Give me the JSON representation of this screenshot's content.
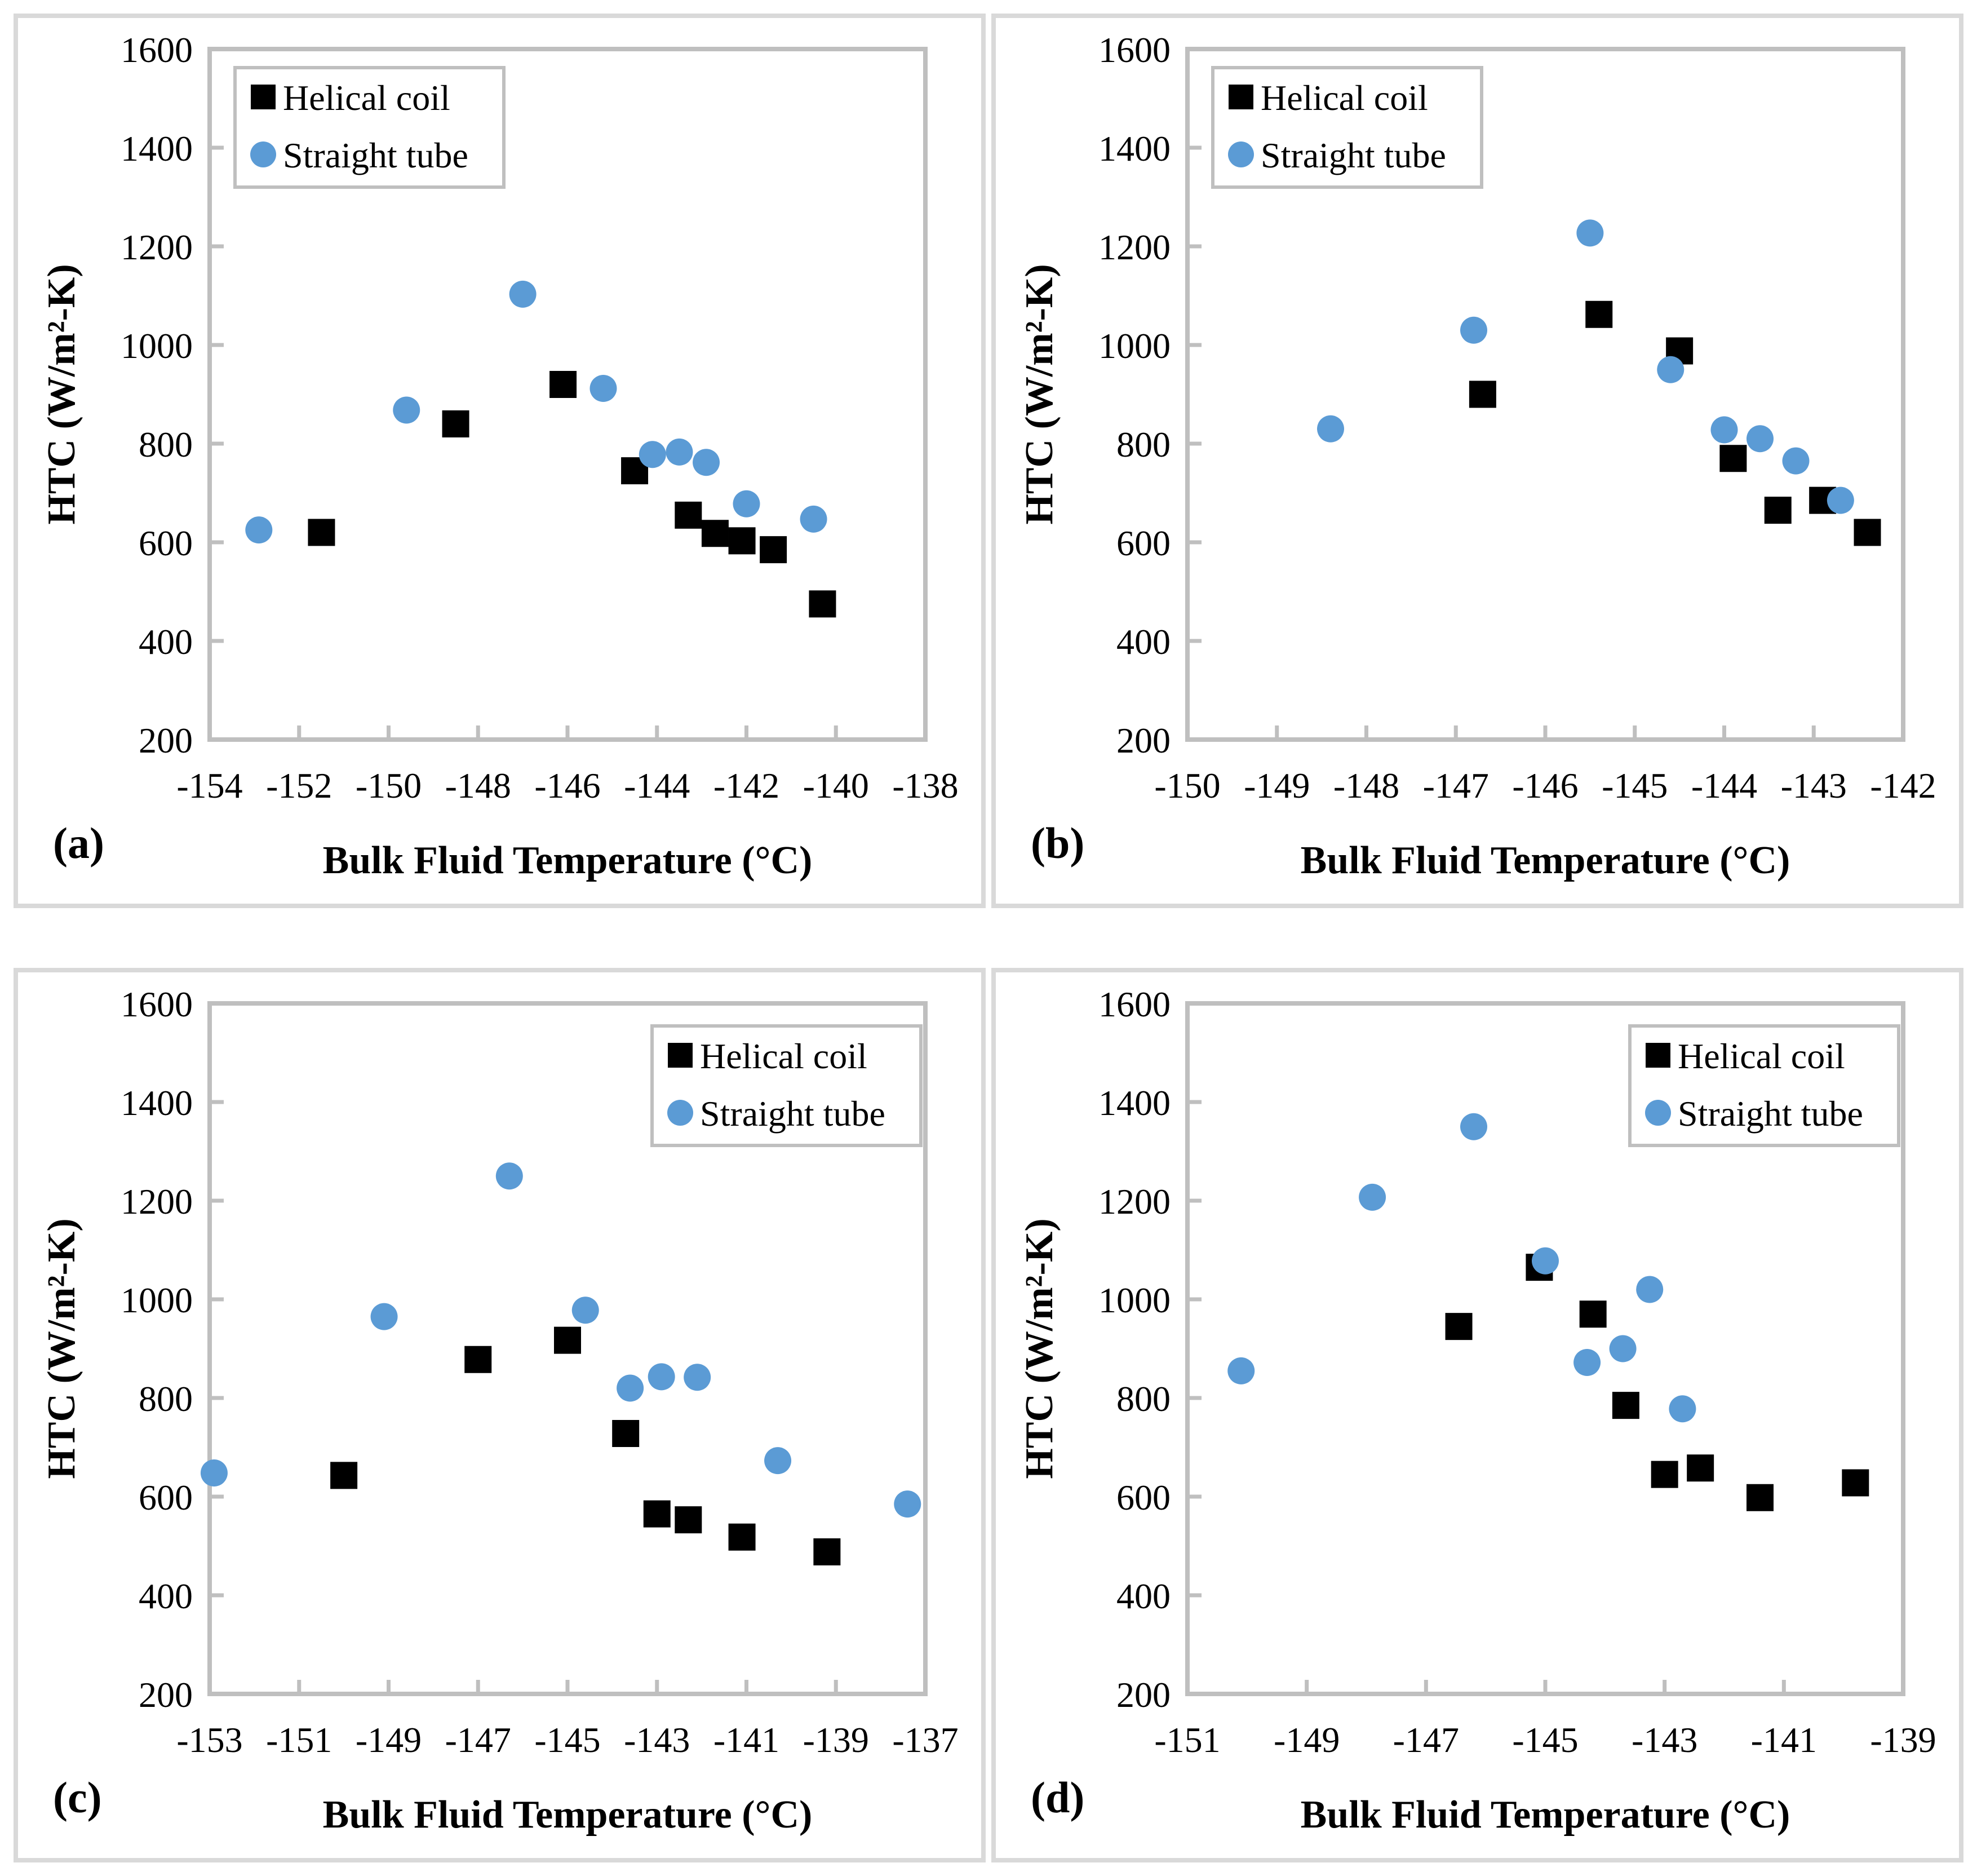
{
  "figure": {
    "background": "#ffffff",
    "panel_border_color": "#d9d9d9",
    "axis_color": "#bfbfbf",
    "legend_border_color": "#bfbfbf",
    "text_color": "#000000",
    "helical_color": "#000000",
    "straight_color": "#5b9bd5"
  },
  "chart_data": [
    {
      "id": "a",
      "type": "scatter",
      "panel_label": "(a)",
      "xlabel": "Bulk Fluid Temperature (°C)",
      "ylabel": "HTC (W/m²-K)",
      "xlim": [
        -154,
        -138
      ],
      "xticks": [
        -154,
        -152,
        -150,
        -148,
        -146,
        -144,
        -142,
        -140,
        -138
      ],
      "ylim": [
        200,
        1600
      ],
      "yticks": [
        200,
        400,
        600,
        800,
        1000,
        1200,
        1400,
        1600
      ],
      "grid": false,
      "legend_position": "top-left",
      "legend_items": [
        "Helical coil",
        "Straight tube"
      ],
      "series": [
        {
          "name": "Helical coil",
          "marker": "square",
          "color": "#000000",
          "points": [
            [
              -151.5,
              620
            ],
            [
              -148.5,
              840
            ],
            [
              -146.1,
              920
            ],
            [
              -144.5,
              745
            ],
            [
              -143.3,
              655
            ],
            [
              -142.7,
              618
            ],
            [
              -142.1,
              603
            ],
            [
              -141.4,
              585
            ],
            [
              -140.3,
              475
            ]
          ]
        },
        {
          "name": "Straight tube",
          "marker": "circle",
          "color": "#5b9bd5",
          "points": [
            [
              -152.9,
              625
            ],
            [
              -149.6,
              868
            ],
            [
              -147.0,
              1103
            ],
            [
              -145.2,
              912
            ],
            [
              -144.1,
              778
            ],
            [
              -143.5,
              783
            ],
            [
              -142.9,
              762
            ],
            [
              -142.0,
              678
            ],
            [
              -140.5,
              647
            ]
          ]
        }
      ]
    },
    {
      "id": "b",
      "type": "scatter",
      "panel_label": "(b)",
      "xlabel": "Bulk Fluid Temperature (°C)",
      "ylabel": "HTC (W/m²-K)",
      "xlim": [
        -150,
        -142
      ],
      "xticks": [
        -150,
        -149,
        -148,
        -147,
        -146,
        -145,
        -144,
        -143,
        -142
      ],
      "ylim": [
        200,
        1600
      ],
      "yticks": [
        200,
        400,
        600,
        800,
        1000,
        1200,
        1400,
        1600
      ],
      "grid": false,
      "legend_position": "top-left",
      "legend_items": [
        "Helical coil",
        "Straight tube"
      ],
      "series": [
        {
          "name": "Helical coil",
          "marker": "square",
          "color": "#000000",
          "points": [
            [
              -146.7,
              900
            ],
            [
              -145.4,
              1062
            ],
            [
              -144.5,
              988
            ],
            [
              -143.9,
              770
            ],
            [
              -143.4,
              665
            ],
            [
              -142.9,
              685
            ],
            [
              -142.4,
              620
            ]
          ]
        },
        {
          "name": "Straight tube",
          "marker": "circle",
          "color": "#5b9bd5",
          "points": [
            [
              -148.4,
              830
            ],
            [
              -146.8,
              1030
            ],
            [
              -145.5,
              1227
            ],
            [
              -144.6,
              950
            ],
            [
              -144.0,
              828
            ],
            [
              -143.6,
              810
            ],
            [
              -143.2,
              765
            ],
            [
              -142.7,
              685
            ]
          ]
        }
      ]
    },
    {
      "id": "c",
      "type": "scatter",
      "panel_label": "(c)",
      "xlabel": "Bulk Fluid Temperature (°C)",
      "ylabel": "HTC (W/m²-K)",
      "xlim": [
        -153,
        -137
      ],
      "xticks": [
        -153,
        -151,
        -149,
        -147,
        -145,
        -143,
        -141,
        -139,
        -137
      ],
      "ylim": [
        200,
        1600
      ],
      "yticks": [
        200,
        400,
        600,
        800,
        1000,
        1200,
        1400,
        1600
      ],
      "grid": false,
      "legend_position": "top-right",
      "legend_items": [
        "Helical coil",
        "Straight tube"
      ],
      "series": [
        {
          "name": "Helical coil",
          "marker": "square",
          "color": "#000000",
          "points": [
            [
              -150.0,
              643
            ],
            [
              -147.0,
              878
            ],
            [
              -145.0,
              917
            ],
            [
              -143.7,
              728
            ],
            [
              -143.0,
              565
            ],
            [
              -142.3,
              553
            ],
            [
              -141.1,
              518
            ],
            [
              -139.2,
              488
            ]
          ]
        },
        {
          "name": "Straight tube",
          "marker": "circle",
          "color": "#5b9bd5",
          "points": [
            [
              -152.9,
              648
            ],
            [
              -149.1,
              965
            ],
            [
              -146.3,
              1250
            ],
            [
              -144.6,
              978
            ],
            [
              -143.6,
              820
            ],
            [
              -142.9,
              843
            ],
            [
              -142.1,
              842
            ],
            [
              -140.3,
              673
            ],
            [
              -137.4,
              585
            ]
          ]
        }
      ]
    },
    {
      "id": "d",
      "type": "scatter",
      "panel_label": "(d)",
      "xlabel": "Bulk Fluid Temperature (°C)",
      "ylabel": "HTC (W/m²-K)",
      "xlim": [
        -151,
        -139
      ],
      "xticks": [
        -151,
        -149,
        -147,
        -145,
        -143,
        -141,
        -139
      ],
      "ylim": [
        200,
        1600
      ],
      "yticks": [
        200,
        400,
        600,
        800,
        1000,
        1200,
        1400,
        1600
      ],
      "grid": false,
      "legend_position": "top-right",
      "legend_items": [
        "Helical coil",
        "Straight tube"
      ],
      "series": [
        {
          "name": "Helical coil",
          "marker": "square",
          "color": "#000000",
          "points": [
            [
              -146.45,
              945
            ],
            [
              -145.1,
              1065
            ],
            [
              -144.2,
              970
            ],
            [
              -143.65,
              785
            ],
            [
              -143.0,
              645
            ],
            [
              -142.4,
              658
            ],
            [
              -141.4,
              598
            ],
            [
              -139.8,
              628
            ]
          ]
        },
        {
          "name": "Straight tube",
          "marker": "circle",
          "color": "#5b9bd5",
          "points": [
            [
              -150.1,
              855
            ],
            [
              -147.9,
              1207
            ],
            [
              -146.2,
              1350
            ],
            [
              -145.0,
              1078
            ],
            [
              -144.3,
              872
            ],
            [
              -143.7,
              900
            ],
            [
              -143.25,
              1020
            ],
            [
              -142.7,
              778
            ]
          ]
        }
      ]
    }
  ]
}
